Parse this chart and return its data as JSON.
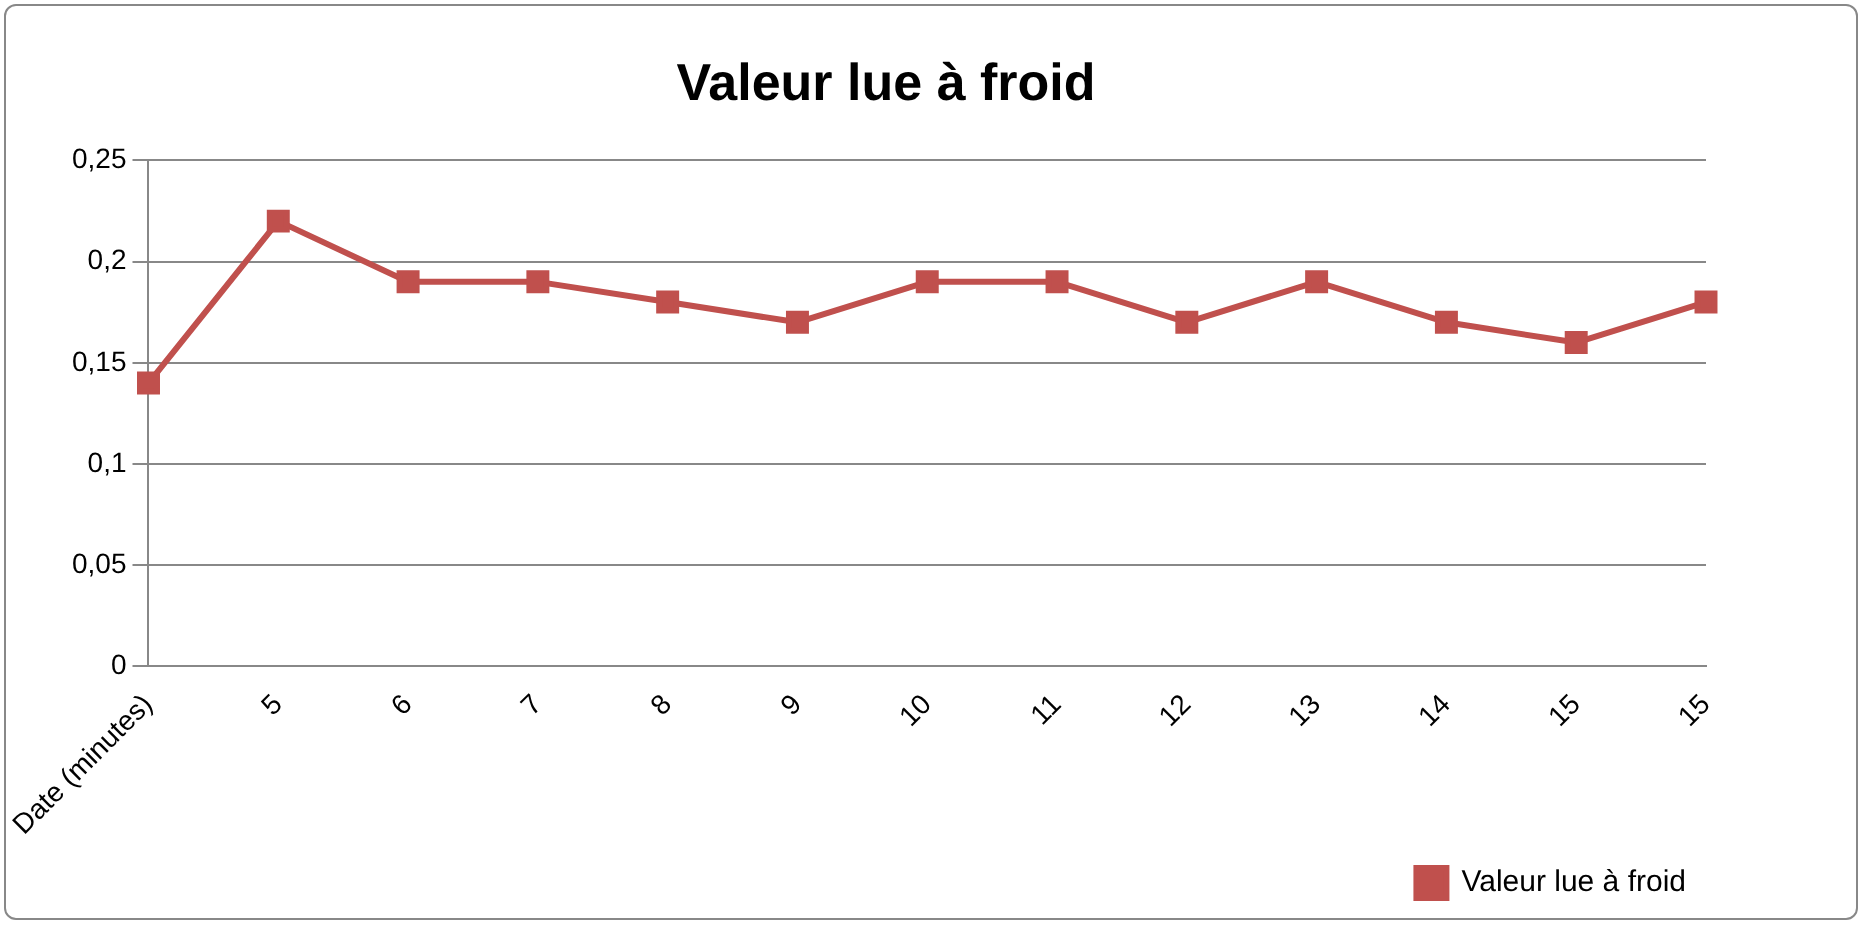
{
  "chart_data": {
    "type": "line",
    "title": "Valeur lue à froid",
    "categories": [
      "Date (minutes)",
      "5",
      "6",
      "7",
      "8",
      "9",
      "10",
      "11",
      "12",
      "13",
      "14",
      "15",
      "15"
    ],
    "series": [
      {
        "name": "Valeur lue à froid",
        "color": "#c0504d",
        "values": [
          0.14,
          0.22,
          0.19,
          0.19,
          0.18,
          0.17,
          0.19,
          0.19,
          0.17,
          0.19,
          0.17,
          0.16,
          0.18
        ]
      }
    ],
    "ylim": [
      0,
      0.25
    ],
    "yticks": [
      0,
      {
        "value": 0.05,
        "label": "0,05"
      },
      {
        "value": 0.1,
        "label": "0,1"
      },
      {
        "value": 0.15,
        "label": "0,15"
      },
      {
        "value": 0.2,
        "label": "0,2"
      },
      {
        "value": 0.25,
        "label": "0,25"
      }
    ],
    "grid": "y",
    "legend": "bottom right",
    "marker": "square",
    "line_style": "solid"
  }
}
